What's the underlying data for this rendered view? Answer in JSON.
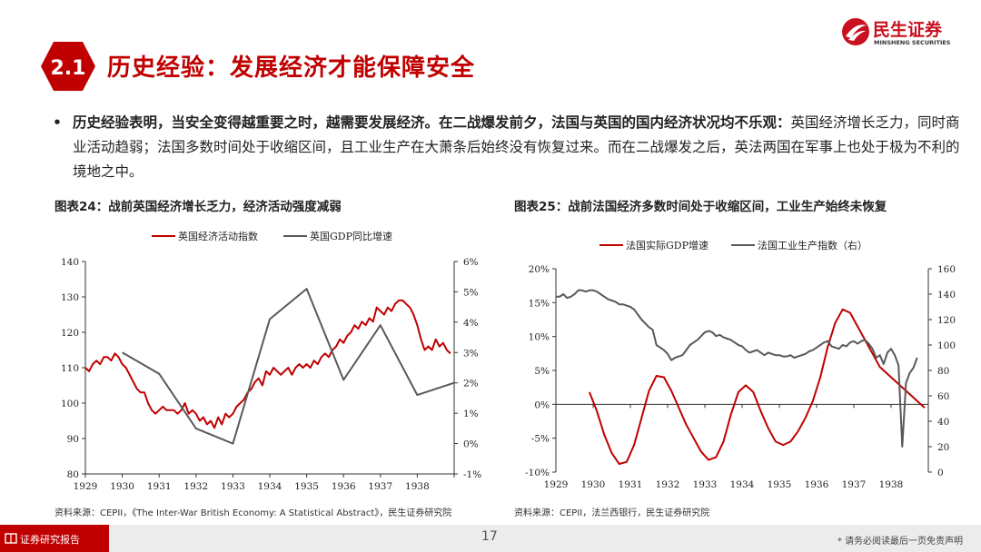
{
  "section": {
    "number": "2.1",
    "title": "历史经验：发展经济才能保障安全"
  },
  "logo": {
    "name": "民生证券",
    "sub": "MINSHENG SECURITIES"
  },
  "bullet": {
    "bold": "历史经验表明，当安全变得越重要之时，越需要发展经济。在二战爆发前夕，法国与英国的国内经济状况均不乐观：",
    "normal": "英国经济增长乏力，同时商业活动趋弱；法国多数时间处于收缩区间，且工业生产在大萧条后始终没有恢复过来。而在二战爆发之后，英法两国在军事上也处于极为不利的境地之中。"
  },
  "footer": {
    "label": "证券研究报告",
    "page": "17",
    "disclaimer": "* 请务必阅读最后一页免责声明"
  },
  "chart_data": [
    {
      "type": "line",
      "title": "图表24：战前英国经济增长乏力，经济活动强度减弱",
      "source": "资料来源：CEPII，《The Inter-War British Economy: A Statistical Abstract》，民生证券研究院",
      "x_ticks": [
        "1929",
        "1930",
        "1931",
        "1932",
        "1933",
        "1934",
        "1935",
        "1936",
        "1937",
        "1938"
      ],
      "xlim": [
        1929,
        1939
      ],
      "y_left": {
        "lim": [
          80,
          140
        ],
        "ticks": [
          "80",
          "90",
          "100",
          "110",
          "120",
          "130",
          "140"
        ]
      },
      "y_right": {
        "lim": [
          -1,
          6
        ],
        "ticks": [
          "-1%",
          "0%",
          "1%",
          "2%",
          "3%",
          "4%",
          "5%",
          "6%"
        ]
      },
      "series": [
        {
          "name": "英国经济活动指数",
          "color": "#c00000",
          "axis": "left",
          "x": [
            1929.0,
            1929.1,
            1929.2,
            1929.3,
            1929.4,
            1929.5,
            1929.6,
            1929.7,
            1929.8,
            1929.9,
            1930.0,
            1930.1,
            1930.2,
            1930.3,
            1930.4,
            1930.5,
            1930.6,
            1930.7,
            1930.8,
            1930.9,
            1931.0,
            1931.1,
            1931.2,
            1931.3,
            1931.4,
            1931.5,
            1931.6,
            1931.7,
            1931.8,
            1931.9,
            1932.0,
            1932.1,
            1932.2,
            1932.3,
            1932.4,
            1932.5,
            1932.6,
            1932.7,
            1932.8,
            1932.9,
            1933.0,
            1933.1,
            1933.2,
            1933.3,
            1933.4,
            1933.5,
            1933.6,
            1933.7,
            1933.8,
            1933.9,
            1934.0,
            1934.1,
            1934.2,
            1934.3,
            1934.4,
            1934.5,
            1934.6,
            1934.7,
            1934.8,
            1934.9,
            1935.0,
            1935.1,
            1935.2,
            1935.3,
            1935.4,
            1935.5,
            1935.6,
            1935.7,
            1935.8,
            1935.9,
            1936.0,
            1936.1,
            1936.2,
            1936.3,
            1936.4,
            1936.5,
            1936.6,
            1936.7,
            1936.8,
            1936.9,
            1937.0,
            1937.1,
            1937.2,
            1937.3,
            1937.4,
            1937.5,
            1937.6,
            1937.7,
            1937.8,
            1937.9,
            1938.0,
            1938.1,
            1938.2,
            1938.3,
            1938.4,
            1938.5,
            1938.6,
            1938.7,
            1938.8,
            1938.9
          ],
          "values": [
            110,
            109,
            111,
            112,
            111,
            113,
            113,
            112,
            114,
            113,
            111,
            110,
            108,
            106,
            104,
            103,
            103,
            100,
            98,
            97,
            98,
            99,
            98,
            98,
            98,
            97,
            98,
            100,
            97,
            98,
            97,
            95,
            96,
            94,
            95,
            93,
            96,
            94,
            97,
            96,
            97,
            99,
            100,
            101,
            103,
            104,
            106,
            107,
            105,
            109,
            108,
            110,
            109,
            108,
            109,
            110,
            108,
            110,
            111,
            110,
            111,
            110,
            112,
            111,
            113,
            114,
            113,
            115,
            116,
            118,
            117,
            119,
            120,
            122,
            121,
            123,
            122,
            124,
            123,
            127,
            126,
            125,
            127,
            126,
            128,
            129,
            129,
            128,
            127,
            125,
            122,
            118,
            115,
            116,
            115,
            118,
            116,
            117,
            115,
            114
          ]
        },
        {
          "name": "英国GDP同比增速",
          "color": "#595959",
          "axis": "right",
          "x": [
            1930,
            1931,
            1932,
            1933,
            1934,
            1935,
            1936,
            1937,
            1938,
            1939
          ],
          "values": [
            3.0,
            2.3,
            0.5,
            0.0,
            4.1,
            5.1,
            2.1,
            3.9,
            1.6,
            2.0
          ]
        }
      ]
    },
    {
      "type": "line",
      "title": "图表25：战前法国经济多数时间处于收缩区间，工业生产始终未恢复",
      "source": "资料来源：CEPII，法兰西银行，民生证券研究院",
      "x_ticks": [
        "1929",
        "1930",
        "1931",
        "1932",
        "1933",
        "1934",
        "1935",
        "1936",
        "1937",
        "1938"
      ],
      "xlim": [
        1929,
        1939
      ],
      "y_left": {
        "lim": [
          -10,
          20
        ],
        "ticks": [
          "-10%",
          "-5%",
          "0%",
          "5%",
          "10%",
          "15%",
          "20%"
        ]
      },
      "y_right": {
        "lim": [
          0,
          160
        ],
        "ticks": [
          "0",
          "20",
          "40",
          "60",
          "80",
          "100",
          "120",
          "140",
          "160"
        ]
      },
      "series": [
        {
          "name": "法国实际GDP增速",
          "color": "#c00000",
          "axis": "left",
          "x": [
            1929.9,
            1930.1,
            1930.3,
            1930.5,
            1930.7,
            1930.9,
            1931.1,
            1931.3,
            1931.5,
            1931.7,
            1931.9,
            1932.1,
            1932.3,
            1932.5,
            1932.7,
            1932.9,
            1933.1,
            1933.3,
            1933.5,
            1933.7,
            1933.9,
            1934.1,
            1934.3,
            1934.5,
            1934.7,
            1934.9,
            1935.1,
            1935.3,
            1935.5,
            1935.7,
            1935.9,
            1936.1,
            1936.3,
            1936.5,
            1936.7,
            1936.9,
            1937.1,
            1937.3,
            1937.5,
            1937.7,
            1937.9,
            1938.1,
            1938.3,
            1938.5,
            1938.7,
            1938.9
          ],
          "values": [
            1.8,
            -1.0,
            -4.5,
            -7.2,
            -8.8,
            -8.5,
            -6.0,
            -2.0,
            2.0,
            4.2,
            4.0,
            2.0,
            -0.5,
            -3.0,
            -5.0,
            -7.0,
            -8.2,
            -7.8,
            -5.5,
            -1.5,
            1.8,
            2.8,
            1.8,
            -1.0,
            -3.5,
            -5.5,
            -6.0,
            -5.5,
            -4.0,
            -2.0,
            0.5,
            4.0,
            8.5,
            12.0,
            14.0,
            13.5,
            11.5,
            9.5,
            7.5,
            5.5,
            4.5,
            3.5,
            2.5,
            1.5,
            0.5,
            -0.5
          ]
        },
        {
          "name": "法国工业生产指数（右）",
          "color": "#595959",
          "axis": "right",
          "x": [
            1929.0,
            1929.1,
            1929.2,
            1929.3,
            1929.4,
            1929.5,
            1929.6,
            1929.7,
            1929.8,
            1929.9,
            1930.0,
            1930.1,
            1930.2,
            1930.3,
            1930.4,
            1930.5,
            1930.6,
            1930.7,
            1930.8,
            1930.9,
            1931.0,
            1931.1,
            1931.2,
            1931.3,
            1931.4,
            1931.5,
            1931.6,
            1931.7,
            1931.8,
            1931.9,
            1932.0,
            1932.1,
            1932.2,
            1932.3,
            1932.4,
            1932.5,
            1932.6,
            1932.7,
            1932.8,
            1932.9,
            1933.0,
            1933.1,
            1933.2,
            1933.3,
            1933.4,
            1933.5,
            1933.6,
            1933.7,
            1933.8,
            1933.9,
            1934.0,
            1934.1,
            1934.2,
            1934.3,
            1934.4,
            1934.5,
            1934.6,
            1934.7,
            1934.8,
            1934.9,
            1935.0,
            1935.1,
            1935.2,
            1935.3,
            1935.4,
            1935.5,
            1935.6,
            1935.7,
            1935.8,
            1935.9,
            1936.0,
            1936.1,
            1936.2,
            1936.3,
            1936.4,
            1936.5,
            1936.6,
            1936.7,
            1936.8,
            1936.9,
            1937.0,
            1937.1,
            1937.2,
            1937.3,
            1937.4,
            1937.5,
            1937.6,
            1937.7,
            1937.8,
            1937.9,
            1938.0,
            1938.1,
            1938.2,
            1938.3,
            1938.4,
            1938.5,
            1938.6,
            1938.7
          ],
          "values": [
            138,
            138,
            140,
            137,
            138,
            140,
            143,
            143,
            142,
            143,
            143,
            142,
            140,
            138,
            136,
            135,
            134,
            132,
            132,
            131,
            130,
            128,
            124,
            120,
            117,
            114,
            112,
            100,
            98,
            96,
            93,
            88,
            90,
            91,
            92,
            96,
            100,
            102,
            104,
            107,
            110,
            111,
            110,
            107,
            108,
            106,
            105,
            104,
            102,
            100,
            99,
            96,
            94,
            95,
            96,
            94,
            92,
            94,
            93,
            92,
            92,
            91,
            91,
            92,
            90,
            91,
            92,
            93,
            95,
            96,
            98,
            100,
            102,
            103,
            99,
            98,
            97,
            100,
            99,
            102,
            103,
            101,
            103,
            104,
            101,
            97,
            90,
            92,
            85,
            94,
            97,
            92,
            84,
            20,
            70,
            78,
            82,
            90
          ]
        }
      ]
    }
  ]
}
